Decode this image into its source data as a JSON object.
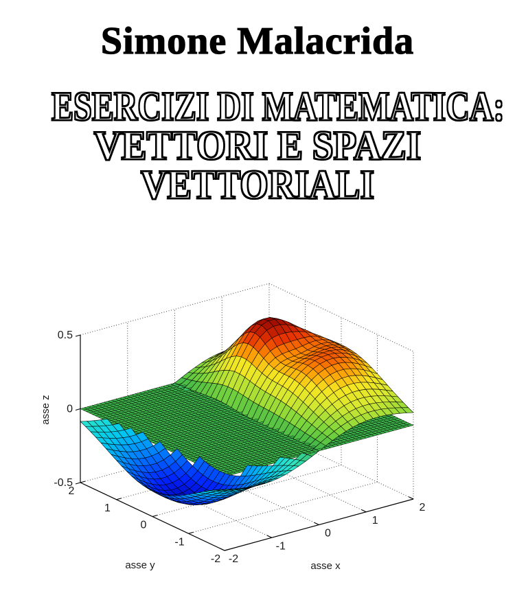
{
  "page": {
    "background": "#ffffff"
  },
  "author": "Simone Malacrida",
  "title": {
    "line1": "ESERCIZI DI MATEMATICA:",
    "line2": "VETTORI E SPAZI",
    "line3": "VETTORIALI"
  },
  "chart_data": {
    "type": "surface3d",
    "title": "",
    "xlabel": "asse x",
    "ylabel": "asse y",
    "zlabel": "asse z",
    "xlim": [
      -2,
      2
    ],
    "ylim": [
      -2,
      2
    ],
    "zlim": [
      -0.5,
      0.5
    ],
    "x_ticks": [
      "-2",
      "-1",
      "0",
      "1",
      "2"
    ],
    "y_ticks": [
      "2",
      "1",
      "0",
      "-1",
      "-2"
    ],
    "z_ticks": [
      "0.5",
      "0",
      "-0.5"
    ],
    "x_tick_values": [
      -2,
      -1,
      0,
      1,
      2
    ],
    "y_tick_values": [
      2,
      1,
      0,
      -1,
      -2
    ],
    "z_tick_values": [
      0.5,
      0,
      -0.5
    ],
    "view": {
      "azimuth": -37.5,
      "elevation": 30,
      "projection": "orthographic"
    },
    "grid": "dotted",
    "mesh_edge_color": "#000000",
    "colormap": [
      [
        "#000090",
        0.0
      ],
      [
        "#0020ff",
        0.1
      ],
      [
        "#0080ff",
        0.22
      ],
      [
        "#00c8f0",
        0.32
      ],
      [
        "#2ee6c8",
        0.42
      ],
      [
        "#3cb44a",
        0.5
      ],
      [
        "#7dd63c",
        0.58
      ],
      [
        "#d8e830",
        0.68
      ],
      [
        "#f5e622",
        0.75
      ],
      [
        "#ff9000",
        0.83
      ],
      [
        "#e63200",
        0.9
      ],
      [
        "#860000",
        1.0
      ]
    ],
    "surfaces": [
      {
        "name": "zero-plane",
        "type": "constant",
        "z": 0,
        "grid_divisions": 48
      },
      {
        "name": "gaussian-wave",
        "type": "analytic",
        "grid_divisions": 28,
        "terms": [
          {
            "kind": "x-gaussian",
            "amplitude": 0.62,
            "sigma2": 3
          },
          {
            "kind": "gaussian",
            "amplitude": 0.17,
            "cx": 0.95,
            "cy": 0.75,
            "k": 2.2
          },
          {
            "kind": "gaussian",
            "amplitude": -0.18,
            "cx": 1.1,
            "cy": 0.12,
            "k": 3
          }
        ]
      }
    ]
  }
}
